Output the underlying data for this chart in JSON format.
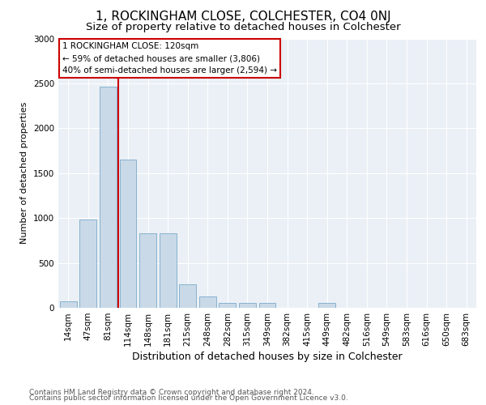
{
  "title": "1, ROCKINGHAM CLOSE, COLCHESTER, CO4 0NJ",
  "subtitle": "Size of property relative to detached houses in Colchester",
  "xlabel": "Distribution of detached houses by size in Colchester",
  "ylabel": "Number of detached properties",
  "categories": [
    "14sqm",
    "47sqm",
    "81sqm",
    "114sqm",
    "148sqm",
    "181sqm",
    "215sqm",
    "248sqm",
    "282sqm",
    "315sqm",
    "349sqm",
    "382sqm",
    "415sqm",
    "449sqm",
    "482sqm",
    "516sqm",
    "549sqm",
    "583sqm",
    "616sqm",
    "650sqm",
    "683sqm"
  ],
  "values": [
    70,
    980,
    2460,
    1650,
    830,
    830,
    260,
    130,
    50,
    50,
    50,
    0,
    0,
    50,
    0,
    0,
    0,
    0,
    0,
    0,
    0
  ],
  "bar_color": "#c9d9e8",
  "bar_edge_color": "#7aaac8",
  "vline_color": "#cc0000",
  "vline_position": 2.5,
  "annotation_text": "1 ROCKINGHAM CLOSE: 120sqm\n← 59% of detached houses are smaller (3,806)\n40% of semi-detached houses are larger (2,594) →",
  "annotation_box_color": "#ffffff",
  "annotation_box_edge": "#cc0000",
  "ylim": [
    0,
    3000
  ],
  "yticks": [
    0,
    500,
    1000,
    1500,
    2000,
    2500,
    3000
  ],
  "plot_bg_color": "#eaf0f6",
  "grid_color": "#ffffff",
  "footer1": "Contains HM Land Registry data © Crown copyright and database right 2024.",
  "footer2": "Contains public sector information licensed under the Open Government Licence v3.0.",
  "title_fontsize": 11,
  "subtitle_fontsize": 9.5,
  "xlabel_fontsize": 9,
  "ylabel_fontsize": 8,
  "tick_fontsize": 7.5,
  "annotation_fontsize": 7.5,
  "footer_fontsize": 6.5
}
